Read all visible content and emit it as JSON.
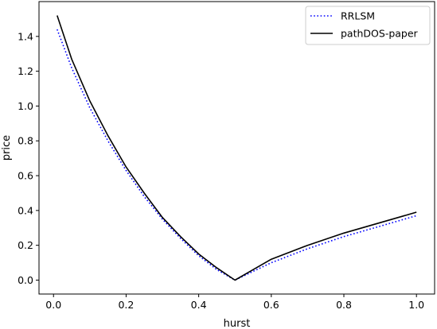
{
  "chart_data": {
    "type": "line",
    "title": "",
    "xlabel": "hurst",
    "ylabel": "price",
    "xlim": [
      -0.04,
      1.05
    ],
    "ylim": [
      -0.08,
      1.6
    ],
    "xticks": [
      0.0,
      0.2,
      0.4,
      0.6,
      0.8,
      1.0
    ],
    "xtick_labels": [
      "0.0",
      "0.2",
      "0.4",
      "0.6",
      "0.8",
      "1.0"
    ],
    "yticks": [
      0.0,
      0.2,
      0.4,
      0.6,
      0.8,
      1.0,
      1.2,
      1.4
    ],
    "ytick_labels": [
      "0.0",
      "0.2",
      "0.4",
      "0.6",
      "0.8",
      "1.0",
      "1.2",
      "1.4"
    ],
    "grid": false,
    "legend_position": "top-right",
    "series": [
      {
        "name": "RRLSM",
        "style": "dotted",
        "color": "#0000ff",
        "x": [
          0.01,
          0.05,
          0.1,
          0.15,
          0.2,
          0.25,
          0.3,
          0.35,
          0.4,
          0.45,
          0.5,
          0.55,
          0.6,
          0.7,
          0.8,
          0.9,
          1.0
        ],
        "y": [
          1.44,
          1.22,
          0.99,
          0.8,
          0.63,
          0.48,
          0.35,
          0.24,
          0.14,
          0.06,
          0.0,
          0.05,
          0.1,
          0.18,
          0.25,
          0.31,
          0.37
        ]
      },
      {
        "name": "pathDOS-paper",
        "style": "solid",
        "color": "#000000",
        "x": [
          0.01,
          0.05,
          0.1,
          0.15,
          0.2,
          0.25,
          0.3,
          0.35,
          0.4,
          0.45,
          0.5,
          0.55,
          0.6,
          0.7,
          0.8,
          0.9,
          1.0
        ],
        "y": [
          1.52,
          1.27,
          1.03,
          0.83,
          0.65,
          0.5,
          0.36,
          0.25,
          0.15,
          0.07,
          0.0,
          0.06,
          0.12,
          0.2,
          0.27,
          0.33,
          0.39
        ]
      }
    ]
  }
}
